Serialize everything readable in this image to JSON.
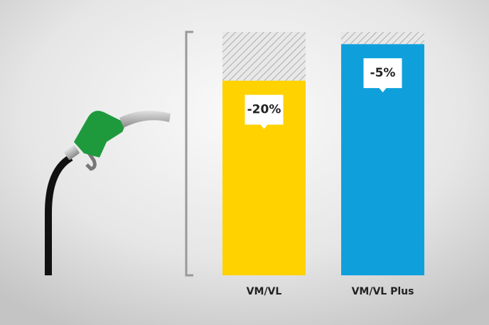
{
  "chart_data": {
    "type": "bar",
    "categories": [
      "VM/VL",
      "VM/VL Plus"
    ],
    "series": [
      {
        "values": [
          -20,
          -5
        ],
        "value_labels": [
          "-20%",
          "-5%"
        ],
        "colors": [
          "#ffd200",
          "#0fa0dc"
        ]
      }
    ],
    "ylim": [
      -100,
      0
    ]
  }
}
